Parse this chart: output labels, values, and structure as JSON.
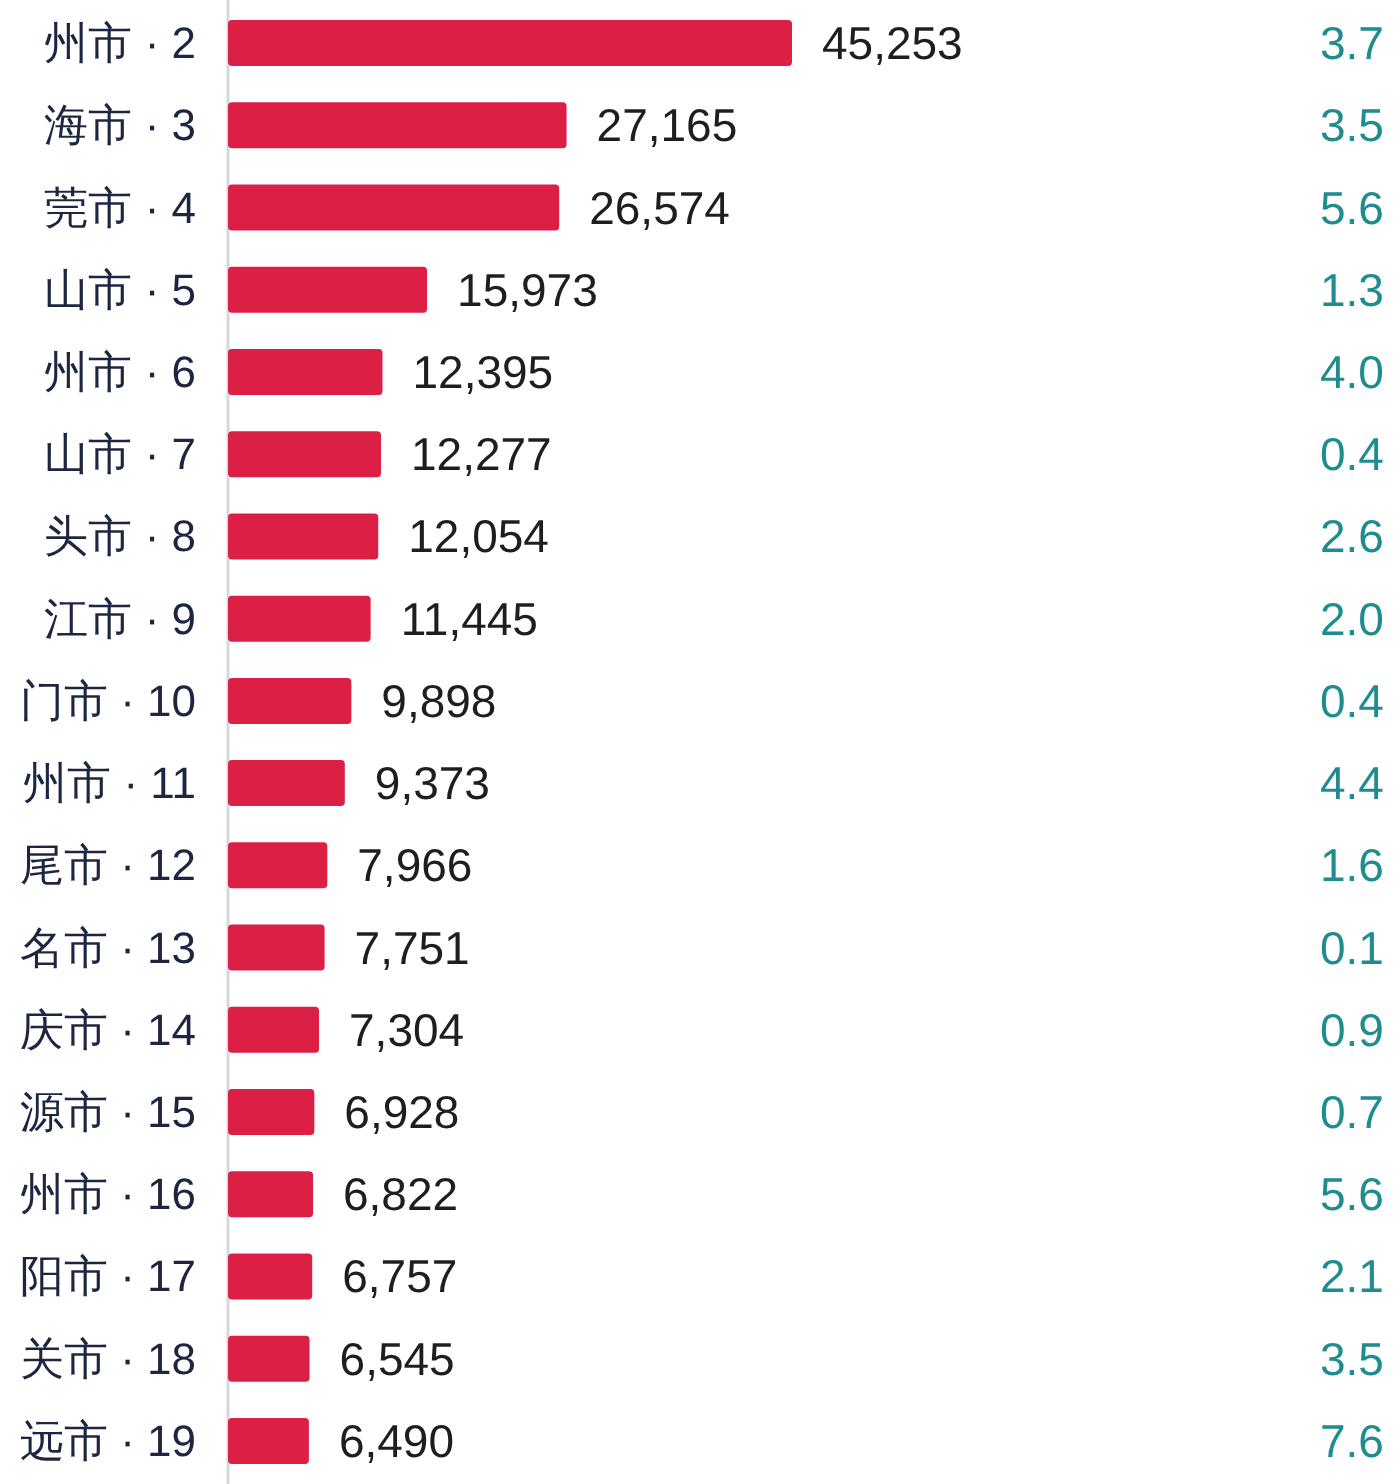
{
  "chart_data": {
    "type": "bar",
    "orientation": "horizontal",
    "color": "#dc1f45",
    "categories": [
      "州市 · 2",
      "海市 · 3",
      "莞市 · 4",
      "山市 · 5",
      "州市 · 6",
      "山市 · 7",
      "头市 · 8",
      "江市 · 9",
      "门市 · 10",
      "州市 · 11",
      "尾市 · 12",
      "名市 · 13",
      "庆市 · 14",
      "源市 · 15",
      "州市 · 16",
      "阳市 · 17",
      "关市 · 18",
      "远市 · 19"
    ],
    "values": [
      45253,
      27165,
      26574,
      15973,
      12395,
      12277,
      12054,
      11445,
      9898,
      9373,
      7966,
      7751,
      7304,
      6928,
      6822,
      6757,
      6545,
      6490
    ],
    "value_labels": [
      "45,253",
      "27,165",
      "26,574",
      "15,973",
      "12,395",
      "12,277",
      "12,054",
      "11,445",
      "9,898",
      "9,373",
      "7,966",
      "7,751",
      "7,304",
      "6,928",
      "6,822",
      "6,757",
      "6,545",
      "6,490"
    ],
    "y2_categories": [
      "3.7",
      "3.5",
      "5.6",
      "1.3",
      "4.0",
      "0.4",
      "2.6",
      "2.0",
      "0.4",
      "4.4",
      "1.6",
      "0.1",
      "0.9",
      "0.7",
      "5.6",
      "2.1",
      "3.5",
      "7.6"
    ]
  }
}
